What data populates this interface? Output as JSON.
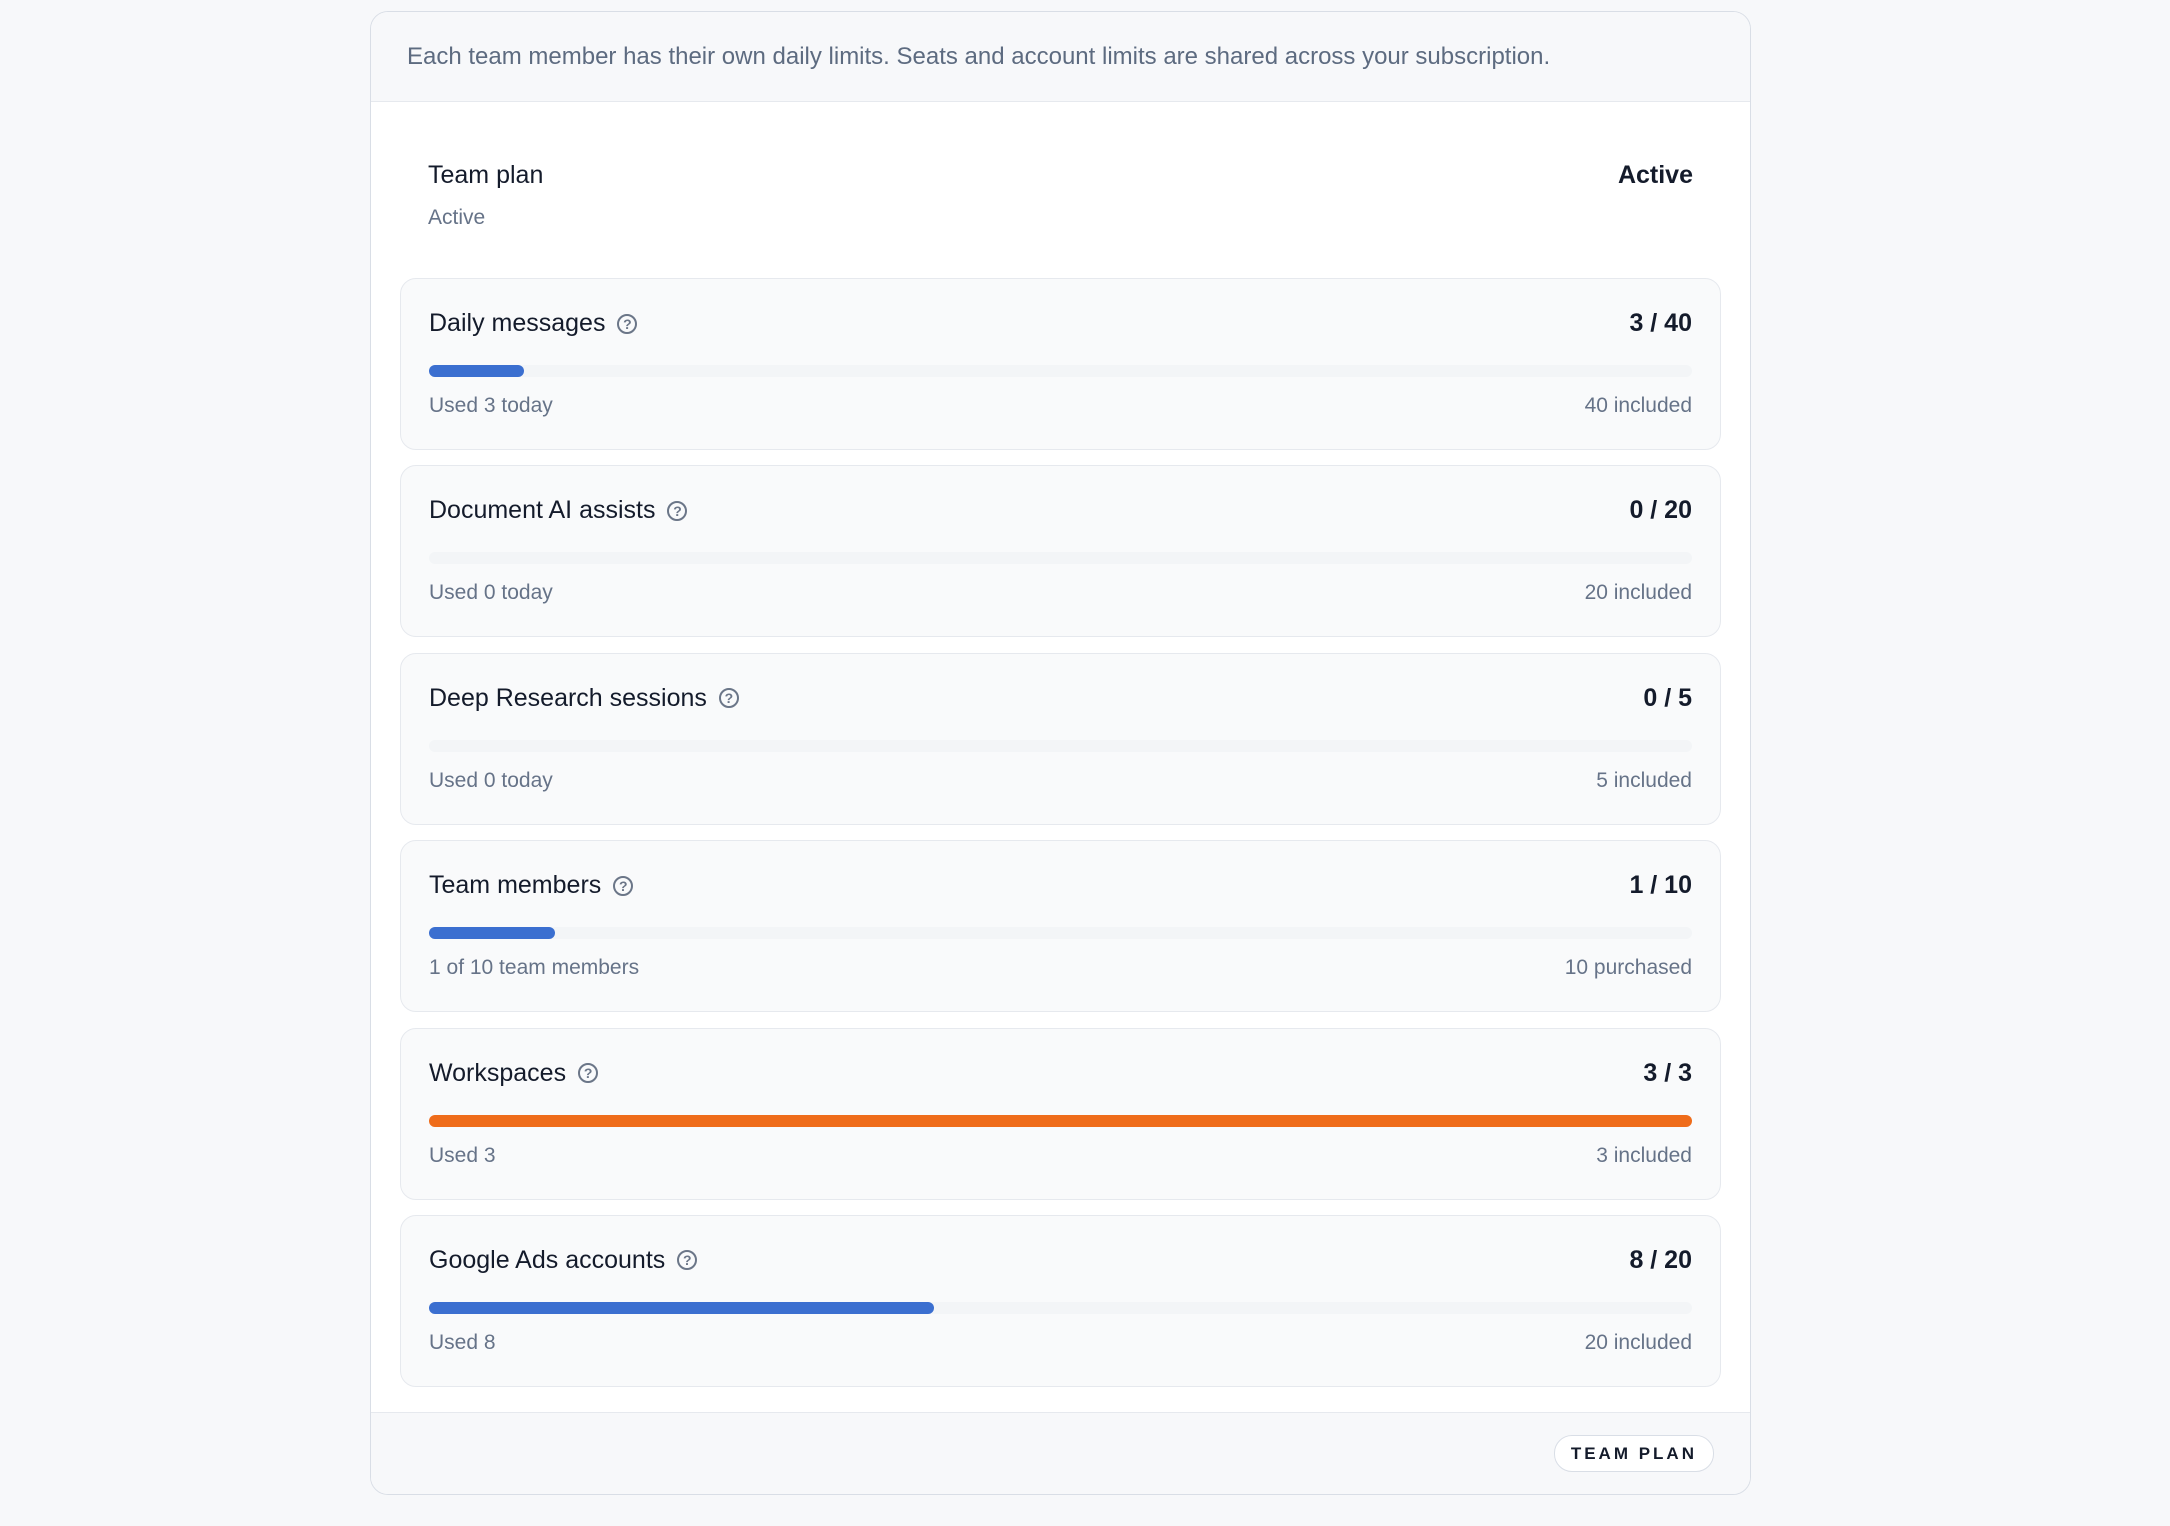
{
  "header": {
    "notice": "Each team member has their own daily limits. Seats and account limits are shared across your subscription."
  },
  "plan": {
    "title": "Team plan",
    "subtitle": "Active",
    "status": "Active"
  },
  "colors": {
    "normal": "#3b6fd0",
    "full": "#ef6c1a"
  },
  "items": [
    {
      "name": "Daily messages",
      "value": "3 / 40",
      "sub": "Used 3 today",
      "included": "40 included",
      "progress": 7.5,
      "color": "#3b6fd0"
    },
    {
      "name": "Document AI assists",
      "value": "0 / 20",
      "sub": "Used 0 today",
      "included": "20 included",
      "progress": 0,
      "color": "#3b6fd0"
    },
    {
      "name": "Deep Research sessions",
      "value": "0 / 5",
      "sub": "Used 0 today",
      "included": "5 included",
      "progress": 0,
      "color": "#3b6fd0"
    },
    {
      "name": "Team members",
      "value": "1 / 10",
      "sub": "1 of 10 team members",
      "included": "10 purchased",
      "progress": 10,
      "color": "#3b6fd0"
    },
    {
      "name": "Workspaces",
      "value": "3 / 3",
      "sub": "Used 3",
      "included": "3 included",
      "progress": 100,
      "color": "#ef6c1a"
    },
    {
      "name": "Google Ads accounts",
      "value": "8 / 20",
      "sub": "Used 8",
      "included": "20 included",
      "progress": 40,
      "color": "#3b6fd0"
    }
  ],
  "footer": {
    "badge": "TEAM PLAN"
  },
  "icons": {
    "help": "help-circle-icon",
    "help_glyph": "?"
  }
}
